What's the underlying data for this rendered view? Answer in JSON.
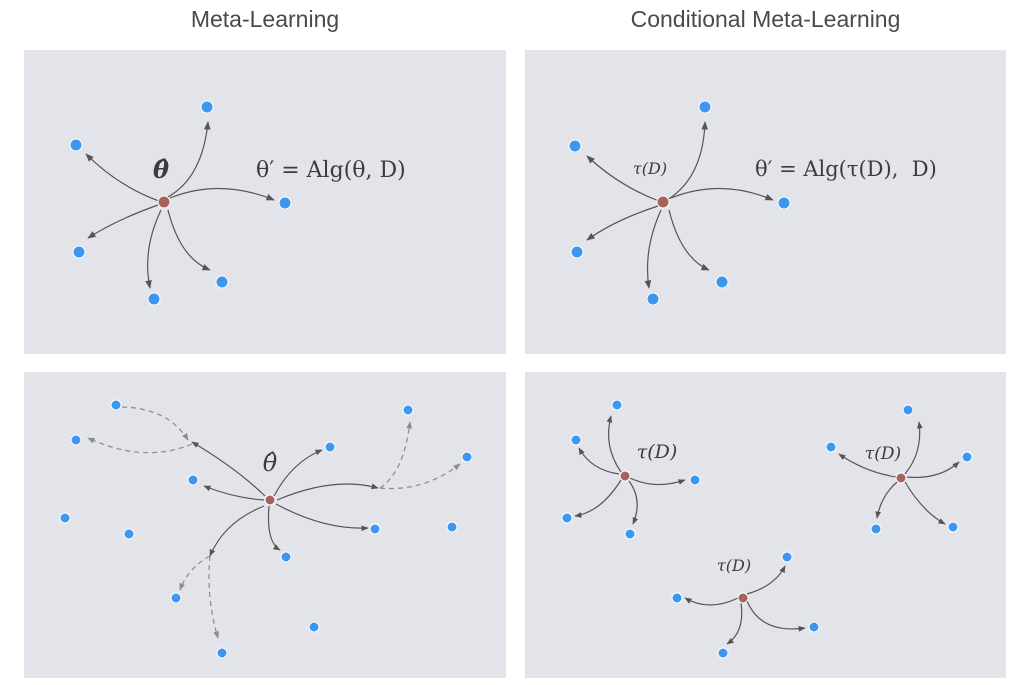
{
  "titles": {
    "left": "Meta-Learning",
    "right": "Conditional Meta-Learning"
  },
  "colors": {
    "panel": "#e3e4e9",
    "task_point": "#3d97ef",
    "center_point": "#a8625e",
    "arrow": "#555555",
    "arrow_dashed": "#8a8a8a"
  },
  "panels": {
    "top_left": {
      "center_label": "θ̂",
      "formula": "θ′ = Alg(θ, D)"
    },
    "top_right": {
      "center_label": "τ(D)",
      "formula": "θ′ = Alg(τ(D),  D)"
    },
    "bottom_left": {
      "center_label": "θ̂"
    },
    "bottom_right": {
      "cluster_labels": [
        "τ(D)",
        "τ(D)",
        "τ(D)"
      ]
    }
  }
}
